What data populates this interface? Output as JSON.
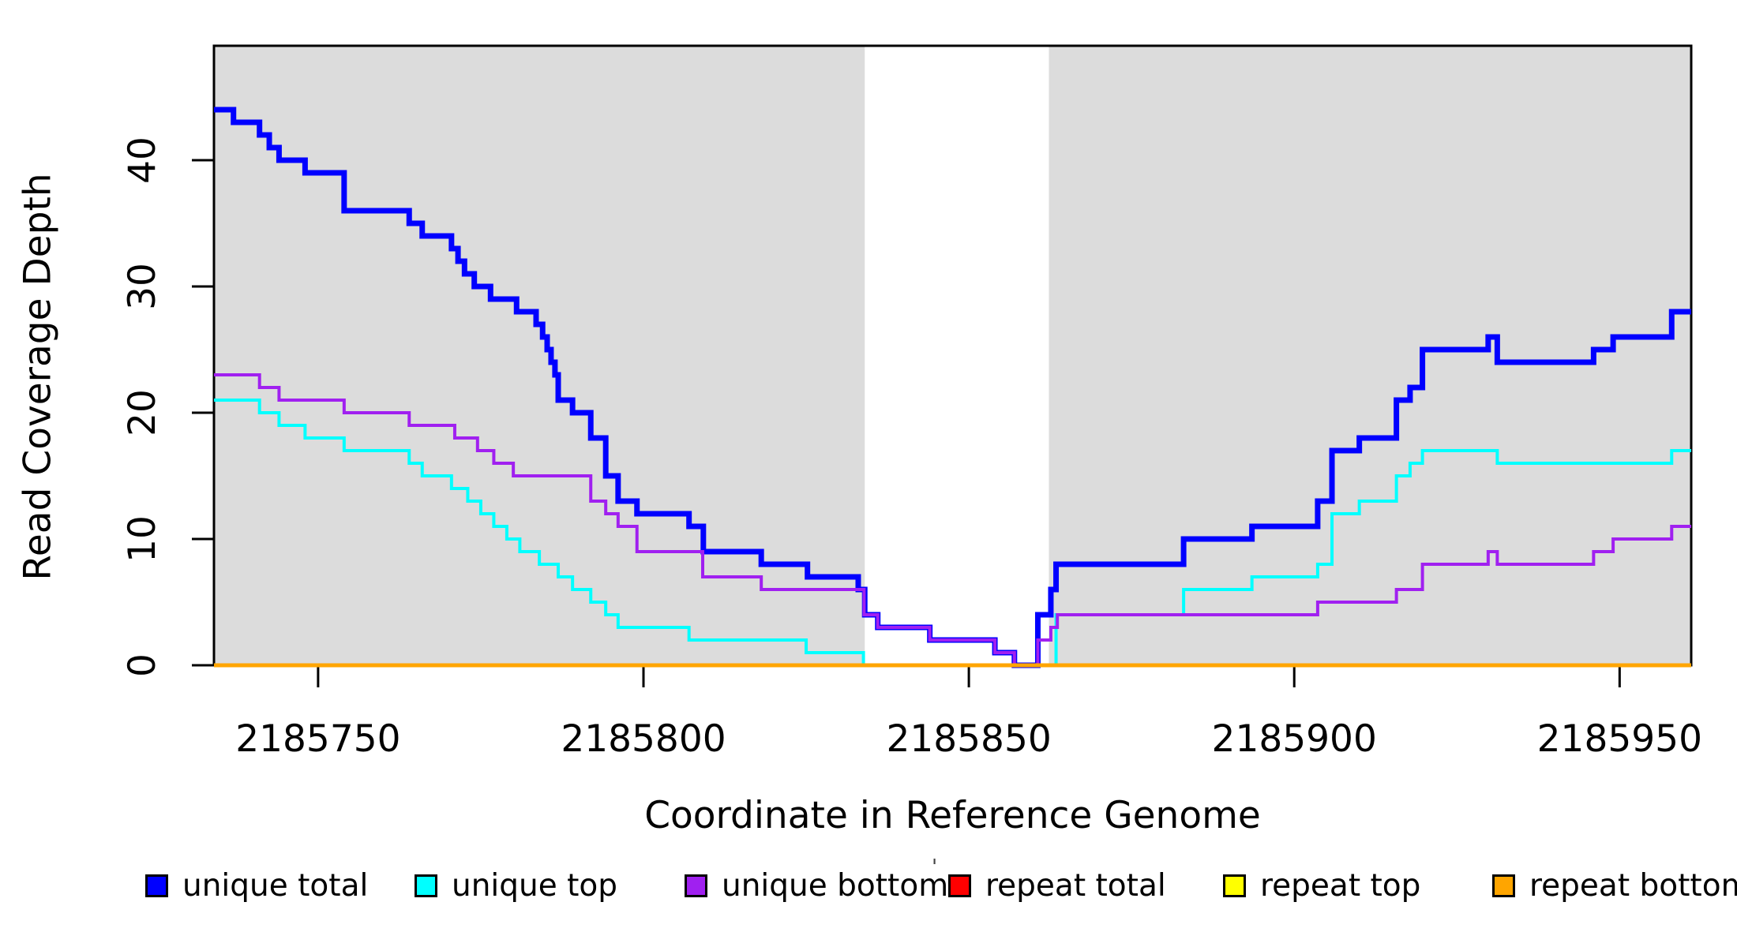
{
  "chart_data": {
    "type": "line",
    "step": true,
    "title": "",
    "xlabel": "Coordinate in Reference Genome",
    "ylabel": "Read Coverage Depth",
    "x_domain": [
      2185734,
      2185961
    ],
    "y_domain": [
      0,
      49
    ],
    "grid": false,
    "legend_position": "bottom",
    "x_axis": {
      "label": "Coordinate in Reference Genome",
      "ticks": [
        {
          "value": 2185750,
          "label": "2185750"
        },
        {
          "value": 2185800,
          "label": "2185800"
        },
        {
          "value": 2185850,
          "label": "2185850"
        },
        {
          "value": 2185900,
          "label": "2185900"
        },
        {
          "value": 2185950,
          "label": "2185950"
        }
      ]
    },
    "y_axis": {
      "label": "Read Coverage Depth",
      "ticks": [
        {
          "value": 0,
          "label": "0"
        },
        {
          "value": 10,
          "label": "10"
        },
        {
          "value": 20,
          "label": "20"
        },
        {
          "value": 30,
          "label": "30"
        },
        {
          "value": 40,
          "label": "40"
        }
      ]
    },
    "shaded_regions": [
      {
        "from": 2185734,
        "to": 2185834,
        "meaning": "unique region"
      },
      {
        "from": 2185862.3,
        "to": 2185961,
        "meaning": "unique region"
      }
    ],
    "shade_color": "#DCDCDC",
    "series": [
      {
        "name": "unique total",
        "color": "#0000FF",
        "width": 7,
        "points": [
          [
            2185734,
            44
          ],
          [
            2185737,
            43
          ],
          [
            2185741,
            42
          ],
          [
            2185742.5,
            41
          ],
          [
            2185744,
            40
          ],
          [
            2185748,
            39
          ],
          [
            2185754,
            36
          ],
          [
            2185764,
            35
          ],
          [
            2185766,
            34
          ],
          [
            2185770.5,
            33
          ],
          [
            2185771.5,
            32
          ],
          [
            2185772.5,
            31
          ],
          [
            2185774,
            30
          ],
          [
            2185776.5,
            29
          ],
          [
            2185780.5,
            28
          ],
          [
            2185783.5,
            27
          ],
          [
            2185784.5,
            26
          ],
          [
            2185785.2,
            25
          ],
          [
            2185785.8,
            24
          ],
          [
            2185786.4,
            23
          ],
          [
            2185786.9,
            21
          ],
          [
            2185789.1,
            20
          ],
          [
            2185791.9,
            18
          ],
          [
            2185794.2,
            15
          ],
          [
            2185796.1,
            13
          ],
          [
            2185799,
            12
          ],
          [
            2185807,
            11
          ],
          [
            2185809.2,
            9
          ],
          [
            2185818.1,
            8
          ],
          [
            2185825.2,
            7
          ],
          [
            2185833,
            6
          ],
          [
            2185834,
            4
          ],
          [
            2185836,
            3
          ],
          [
            2185844,
            2
          ],
          [
            2185854,
            1
          ],
          [
            2185857,
            0
          ],
          [
            2185860.6,
            4
          ],
          [
            2185862.6,
            6
          ],
          [
            2185863.4,
            8
          ],
          [
            2185883,
            10
          ],
          [
            2185893.5,
            11
          ],
          [
            2185903.6,
            13
          ],
          [
            2185905.8,
            17
          ],
          [
            2185910,
            18
          ],
          [
            2185915.7,
            21
          ],
          [
            2185917.8,
            22
          ],
          [
            2185919.7,
            25
          ],
          [
            2185929.8,
            26
          ],
          [
            2185931.2,
            24
          ],
          [
            2185946,
            25
          ],
          [
            2185949,
            26
          ],
          [
            2185958,
            28
          ]
        ]
      },
      {
        "name": "unique top",
        "color": "#00FFFF",
        "width": 4,
        "points": [
          [
            2185734,
            21
          ],
          [
            2185741,
            20
          ],
          [
            2185744,
            19
          ],
          [
            2185748,
            18
          ],
          [
            2185754,
            17
          ],
          [
            2185764,
            16
          ],
          [
            2185766,
            15
          ],
          [
            2185770.5,
            14
          ],
          [
            2185773,
            13
          ],
          [
            2185775,
            12
          ],
          [
            2185777,
            11
          ],
          [
            2185779,
            10
          ],
          [
            2185781,
            9
          ],
          [
            2185784,
            8
          ],
          [
            2185786.9,
            7
          ],
          [
            2185789.1,
            6
          ],
          [
            2185791.9,
            5
          ],
          [
            2185794.2,
            4
          ],
          [
            2185796.1,
            3
          ],
          [
            2185807,
            2
          ],
          [
            2185825,
            1
          ],
          [
            2185833.8,
            0
          ],
          [
            2185863.4,
            4
          ],
          [
            2185883,
            6
          ],
          [
            2185893.5,
            7
          ],
          [
            2185903.6,
            8
          ],
          [
            2185905.8,
            12
          ],
          [
            2185910,
            13
          ],
          [
            2185915.7,
            15
          ],
          [
            2185917.8,
            16
          ],
          [
            2185919.7,
            17
          ],
          [
            2185931.2,
            16
          ],
          [
            2185958,
            17
          ]
        ]
      },
      {
        "name": "unique bottom",
        "color": "#A020F0",
        "width": 4,
        "points": [
          [
            2185734,
            23
          ],
          [
            2185741,
            22
          ],
          [
            2185744,
            21
          ],
          [
            2185754,
            20
          ],
          [
            2185764,
            19
          ],
          [
            2185771,
            18
          ],
          [
            2185774.5,
            17
          ],
          [
            2185777,
            16
          ],
          [
            2185780,
            15
          ],
          [
            2185791.9,
            13
          ],
          [
            2185794.2,
            12
          ],
          [
            2185796.1,
            11
          ],
          [
            2185799,
            9
          ],
          [
            2185809.1,
            7
          ],
          [
            2185818.1,
            6
          ],
          [
            2185833.9,
            4
          ],
          [
            2185836,
            3
          ],
          [
            2185844,
            2
          ],
          [
            2185854,
            1
          ],
          [
            2185857,
            0
          ],
          [
            2185860.6,
            2
          ],
          [
            2185862.6,
            3
          ],
          [
            2185863.6,
            4
          ],
          [
            2185903.6,
            5
          ],
          [
            2185915.7,
            6
          ],
          [
            2185919.7,
            8
          ],
          [
            2185929.8,
            9
          ],
          [
            2185931.2,
            8
          ],
          [
            2185946,
            9
          ],
          [
            2185949,
            10
          ],
          [
            2185958,
            11
          ]
        ]
      },
      {
        "name": "repeat total",
        "color": "#FF0000",
        "width": 4,
        "points": [
          [
            2185734,
            0
          ]
        ]
      },
      {
        "name": "repeat top",
        "color": "#FFFF00",
        "width": 4,
        "points": [
          [
            2185734,
            0
          ]
        ]
      },
      {
        "name": "repeat bottom",
        "color": "#FFA500",
        "width": 5,
        "points": [
          [
            2185734,
            0
          ]
        ]
      }
    ]
  },
  "axis_titles": {
    "x": "Coordinate in Reference Genome",
    "y": "Read Coverage Depth"
  },
  "legend": {
    "items": [
      {
        "label": "unique total",
        "color": "#0000FF"
      },
      {
        "label": "unique top",
        "color": "#00FFFF"
      },
      {
        "label": "unique bottom",
        "color": "#A020F0"
      },
      {
        "label": "repeat total",
        "color": "#FF0000"
      },
      {
        "label": "repeat top",
        "color": "#FFFF00"
      },
      {
        "label": "repeat bottom",
        "color": "#FFA500"
      }
    ],
    "stray_mark": "'"
  }
}
